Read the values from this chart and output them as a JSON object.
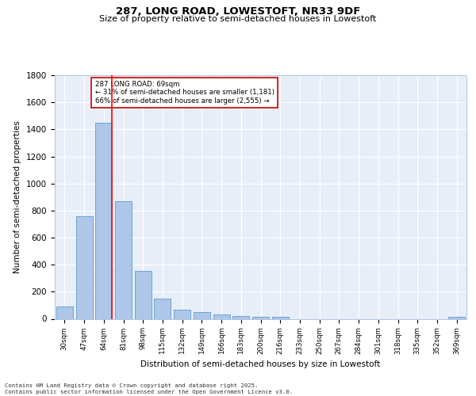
{
  "title1": "287, LONG ROAD, LOWESTOFT, NR33 9DF",
  "title2": "Size of property relative to semi-detached houses in Lowestoft",
  "xlabel": "Distribution of semi-detached houses by size in Lowestoft",
  "ylabel": "Number of semi-detached properties",
  "categories": [
    "30sqm",
    "47sqm",
    "64sqm",
    "81sqm",
    "98sqm",
    "115sqm",
    "132sqm",
    "149sqm",
    "166sqm",
    "183sqm",
    "200sqm",
    "216sqm",
    "233sqm",
    "250sqm",
    "267sqm",
    "284sqm",
    "301sqm",
    "318sqm",
    "335sqm",
    "352sqm",
    "369sqm"
  ],
  "values": [
    90,
    760,
    1450,
    870,
    355,
    150,
    70,
    50,
    30,
    20,
    15,
    12,
    0,
    0,
    0,
    0,
    0,
    0,
    0,
    0,
    15
  ],
  "bar_color": "#aec6e8",
  "bar_edge_color": "#5a9fd4",
  "red_line_x": 2.43,
  "annotation_text": "287 LONG ROAD: 69sqm\n← 31% of semi-detached houses are smaller (1,181)\n66% of semi-detached houses are larger (2,555) →",
  "annotation_box_color": "#ffffff",
  "annotation_box_edge": "#cc0000",
  "ylim": [
    0,
    1800
  ],
  "yticks": [
    0,
    200,
    400,
    600,
    800,
    1000,
    1200,
    1400,
    1600,
    1800
  ],
  "background_color": "#e8eef8",
  "grid_color": "#ffffff",
  "footer_line1": "Contains HM Land Registry data © Crown copyright and database right 2025.",
  "footer_line2": "Contains public sector information licensed under the Open Government Licence v3.0."
}
